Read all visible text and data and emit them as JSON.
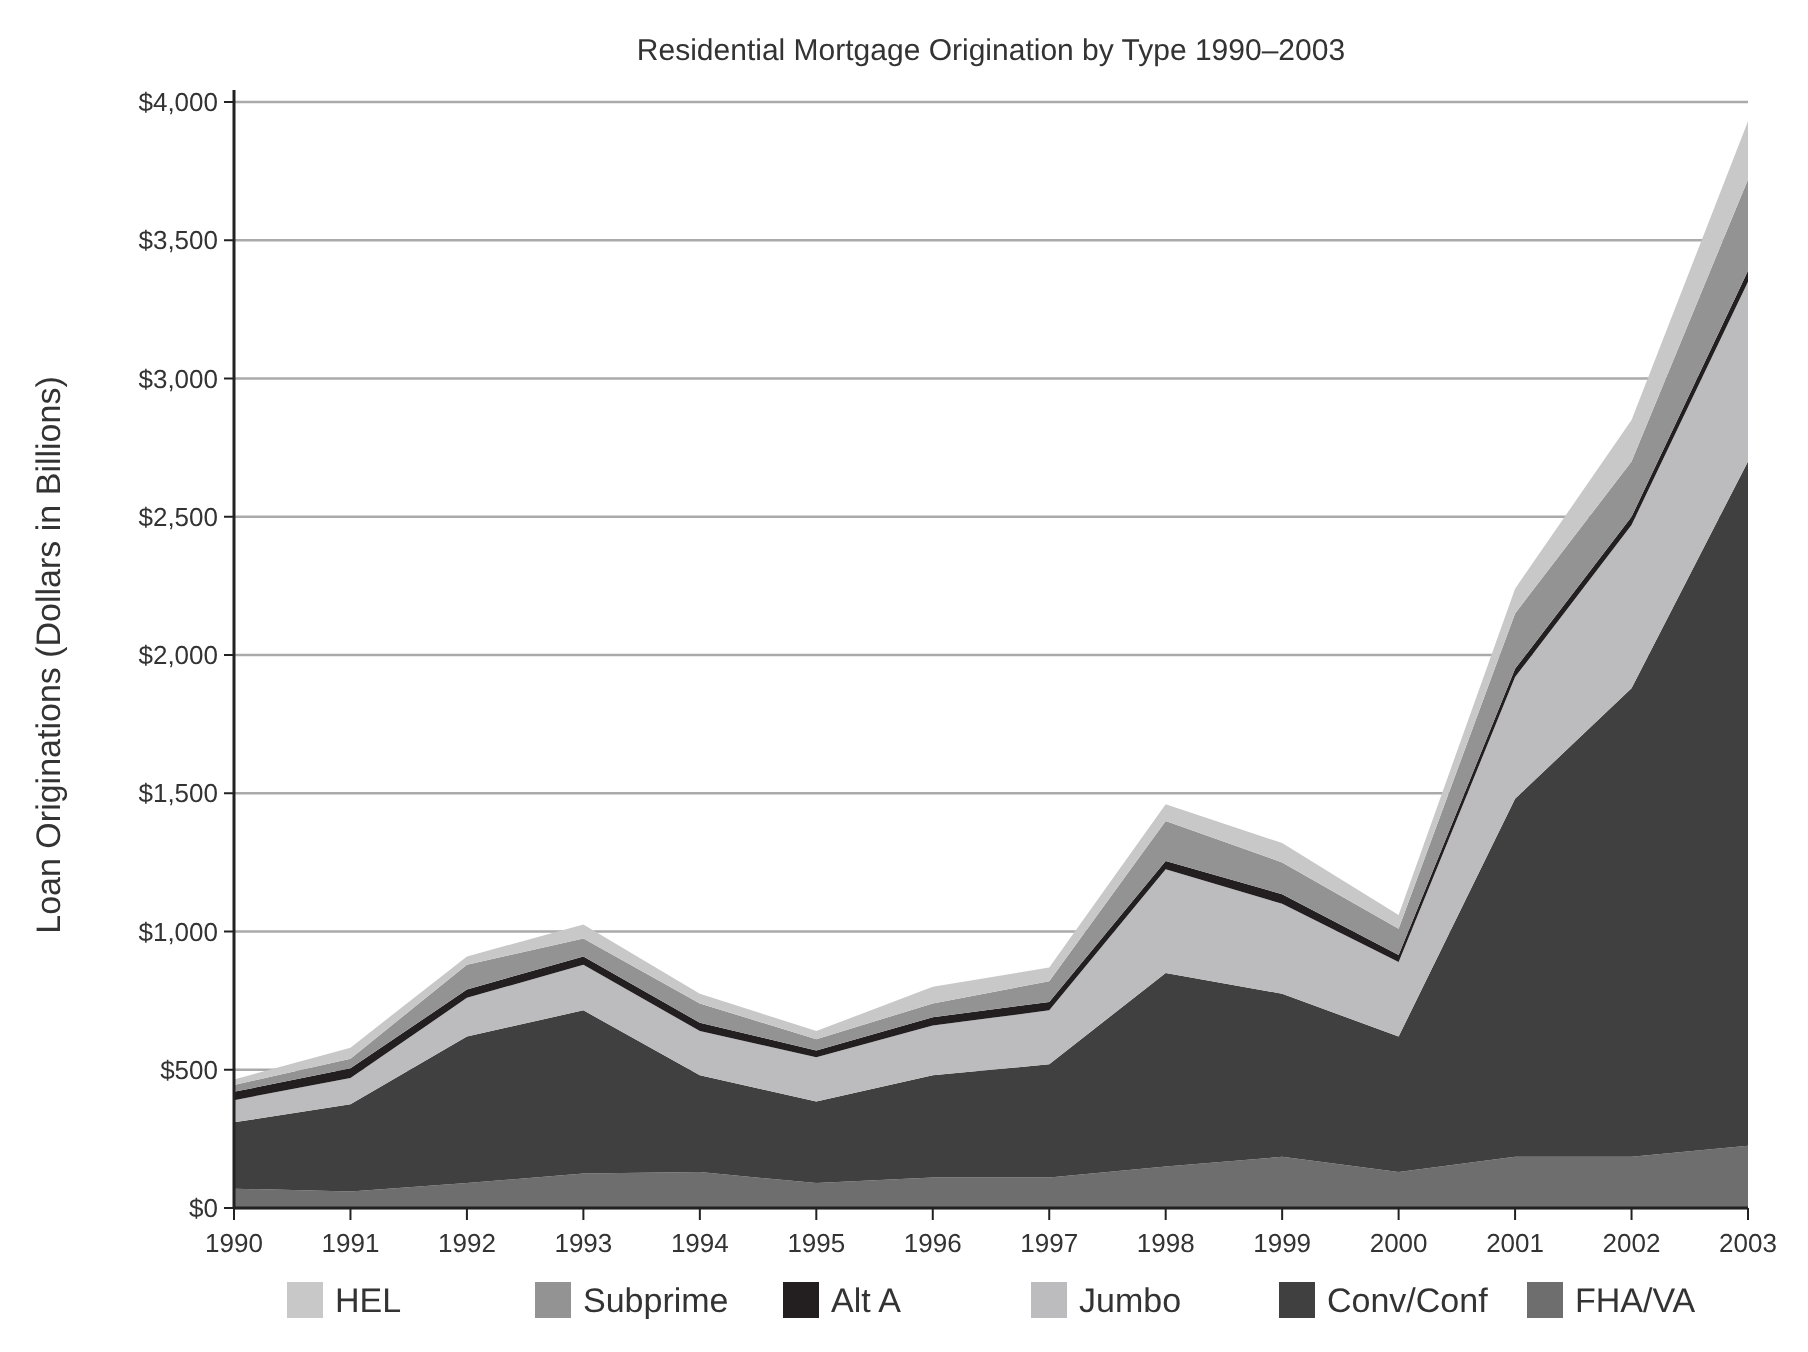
{
  "chart_data": {
    "type": "area",
    "stacked": true,
    "title": "Residential Mortgage Origination by Type 1990–2003",
    "ylabel": "Loan Originations (Dollars in Billions)",
    "x": [
      1990,
      1991,
      1992,
      1993,
      1994,
      1995,
      1996,
      1997,
      1998,
      1999,
      2000,
      2001,
      2002,
      2003
    ],
    "xlim": [
      1990,
      2003
    ],
    "xticks": [
      1990,
      1991,
      1992,
      1993,
      1994,
      1995,
      1996,
      1997,
      1998,
      1999,
      2000,
      2001,
      2002,
      2003
    ],
    "ylim": [
      0,
      4000
    ],
    "yticks": [
      {
        "value": 0,
        "label": "$0"
      },
      {
        "value": 500,
        "label": "$500"
      },
      {
        "value": 1000,
        "label": "$1,000"
      },
      {
        "value": 1500,
        "label": "$1,500"
      },
      {
        "value": 2000,
        "label": "$2,000"
      },
      {
        "value": 2500,
        "label": "$2,500"
      },
      {
        "value": 3000,
        "label": "$3,000"
      },
      {
        "value": 3500,
        "label": "$3,500"
      },
      {
        "value": 4000,
        "label": "$4,000"
      }
    ],
    "grid": "y",
    "legend": "bottom",
    "series": [
      {
        "name": "FHA/VA",
        "color": "#6e6e6e",
        "values": [
          70,
          60,
          90,
          125,
          130,
          90,
          110,
          110,
          150,
          185,
          130,
          185,
          185,
          225
        ]
      },
      {
        "name": "Conv/Conf",
        "color": "#404040",
        "values": [
          240,
          315,
          530,
          590,
          350,
          295,
          370,
          410,
          700,
          590,
          490,
          1295,
          1695,
          2475
        ]
      },
      {
        "name": "Jumbo",
        "color": "#bcbcbe",
        "values": [
          80,
          95,
          140,
          165,
          160,
          160,
          180,
          195,
          375,
          325,
          270,
          440,
          590,
          650
        ]
      },
      {
        "name": "Alt A",
        "color": "#231f20",
        "values": [
          30,
          35,
          30,
          30,
          30,
          25,
          30,
          30,
          30,
          35,
          25,
          30,
          30,
          40
        ]
      },
      {
        "name": "Subprime",
        "color": "#939393",
        "values": [
          25,
          35,
          90,
          65,
          70,
          40,
          50,
          75,
          145,
          115,
          95,
          200,
          200,
          330
        ]
      },
      {
        "name": "HEL",
        "color": "#c8c8c8",
        "values": [
          20,
          40,
          30,
          50,
          35,
          30,
          60,
          50,
          60,
          70,
          50,
          90,
          150,
          210
        ]
      }
    ]
  }
}
